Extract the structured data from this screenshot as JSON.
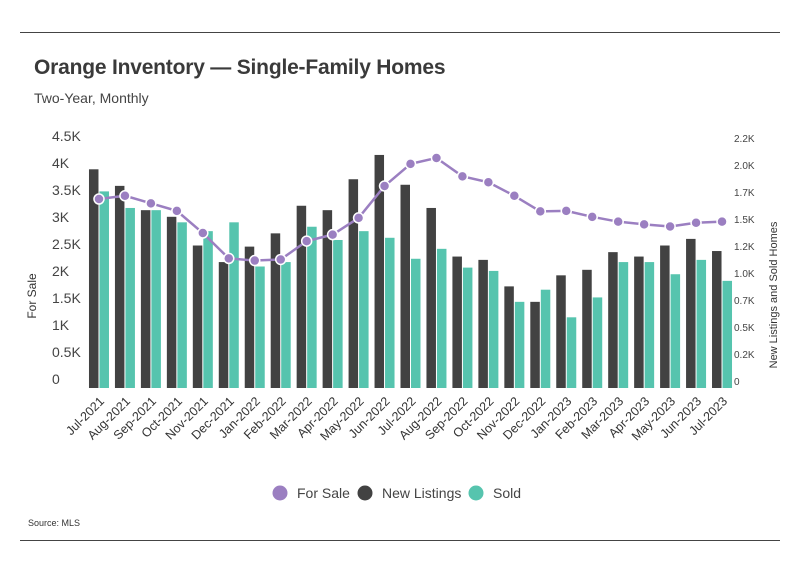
{
  "title": "Orange Inventory — Single-Family Homes",
  "subtitle": "Two-Year, Monthly",
  "source": "Source: MLS",
  "colors": {
    "for_sale": "#9b7fc1",
    "new_listings": "#424242",
    "sold": "#56c4ae"
  },
  "chart_data": {
    "type": "bar",
    "categories": [
      "Jul-2021",
      "Aug-2021",
      "Sep-2021",
      "Oct-2021",
      "Nov-2021",
      "Dec-2021",
      "Jan-2022",
      "Feb-2022",
      "Mar-2022",
      "Apr-2022",
      "May-2022",
      "Jun-2022",
      "Jul-2022",
      "Aug-2022",
      "Sep-2022",
      "Oct-2022",
      "Nov-2022",
      "Dec-2022",
      "Jan-2023",
      "Feb-2023",
      "Mar-2023",
      "Apr-2023",
      "May-2023",
      "Jun-2023",
      "Jul-2023"
    ],
    "series": [
      {
        "name": "For Sale",
        "type": "line",
        "axis": "left",
        "values": [
          3500,
          3560,
          3420,
          3280,
          2870,
          2400,
          2360,
          2380,
          2720,
          2840,
          3150,
          3740,
          4150,
          4260,
          3920,
          3810,
          3560,
          3270,
          3280,
          3170,
          3080,
          3030,
          2990,
          3060,
          3080
        ]
      },
      {
        "name": "New Listings",
        "type": "bar",
        "axis": "right",
        "values": [
          1980,
          1830,
          1610,
          1550,
          1290,
          1140,
          1280,
          1400,
          1650,
          1610,
          1890,
          2110,
          1840,
          1630,
          1190,
          1160,
          920,
          780,
          1020,
          1070,
          1230,
          1190,
          1290,
          1350,
          1240
        ]
      },
      {
        "name": "Sold",
        "type": "bar",
        "axis": "right",
        "values": [
          1780,
          1630,
          1610,
          1500,
          1420,
          1500,
          1100,
          1140,
          1460,
          1340,
          1420,
          1360,
          1170,
          1260,
          1090,
          1060,
          780,
          890,
          640,
          820,
          1140,
          1140,
          1030,
          1160,
          970
        ]
      }
    ],
    "ylim_left": [
      0,
      4500
    ],
    "yticks_left": [
      "0",
      "0.5K",
      "1K",
      "1.5K",
      "2K",
      "2.5K",
      "3K",
      "3.5K",
      "4K",
      "4.5K"
    ],
    "ylim_right": [
      0,
      2200
    ],
    "yticks_right": [
      "0",
      "0.2K",
      "0.5K",
      "0.7K",
      "1.0K",
      "1.2K",
      "1.5K",
      "1.7K",
      "2.0K",
      "2.2K"
    ],
    "ylabel_left": "For Sale",
    "ylabel_right": "New Listings and Sold Homes",
    "xlabel": "",
    "grid": false,
    "legend": {
      "position": "bottom",
      "entries": [
        "For Sale",
        "New Listings",
        "Sold"
      ]
    }
  }
}
